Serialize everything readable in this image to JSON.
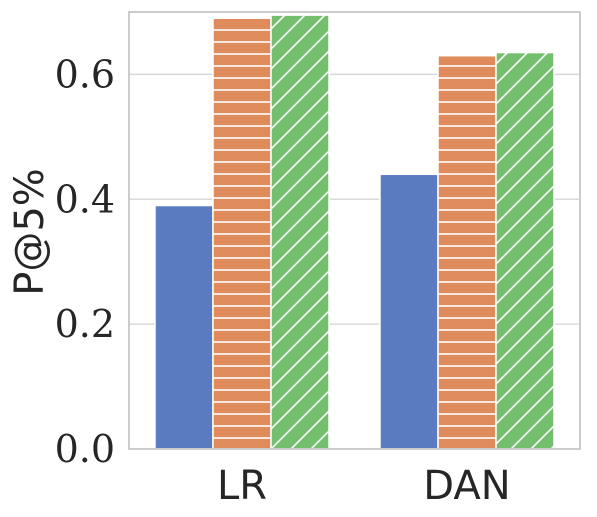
{
  "chart_data": {
    "type": "bar",
    "categories": [
      "LR",
      "DAN"
    ],
    "series": [
      {
        "values": [
          0.39,
          0.44
        ],
        "color": "#5b7bc0",
        "pattern": "solid"
      },
      {
        "values": [
          0.69,
          0.63
        ],
        "color": "#e08b5c",
        "pattern": "horizontal-hatch"
      },
      {
        "values": [
          0.695,
          0.635
        ],
        "color": "#74bf6e",
        "pattern": "diagonal-hatch"
      }
    ],
    "ylabel": "P@5%",
    "ylim": [
      0,
      0.7
    ],
    "yticks": [
      "0.0",
      "0.2",
      "0.4",
      "0.6"
    ],
    "grid": true,
    "legend": "none"
  }
}
